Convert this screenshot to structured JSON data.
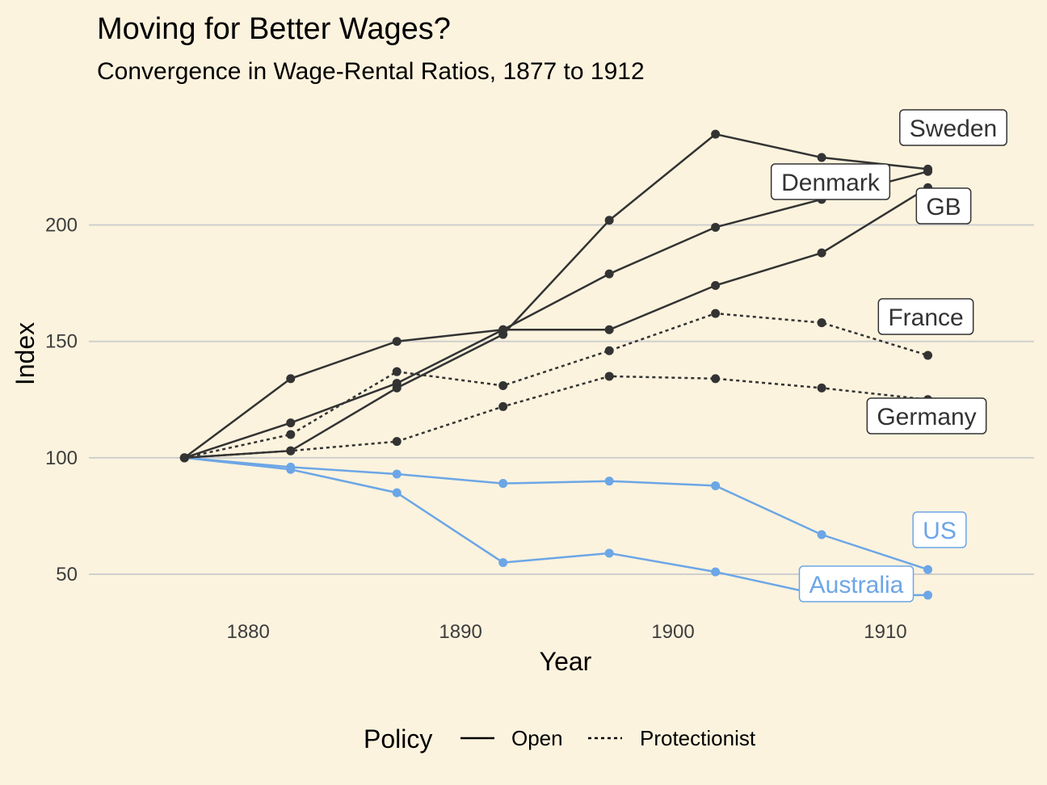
{
  "chart_data": {
    "type": "line",
    "title": "Moving for Better Wages?",
    "subtitle": "Convergence in Wage-Rental Ratios, 1877 to 1912",
    "xlabel": "Year",
    "ylabel": "Index",
    "xlim": [
      1872.5,
      1917
    ],
    "ylim": [
      33,
      255
    ],
    "x_ticks": [
      1880,
      1890,
      1900,
      1910
    ],
    "y_ticks": [
      50,
      100,
      150,
      200
    ],
    "grid": "horizontal major gridlines",
    "legend": {
      "title": "Policy",
      "position": "bottom",
      "items": [
        {
          "label": "Open",
          "linetype": "solid"
        },
        {
          "label": "Protectionist",
          "linetype": "dotted"
        }
      ]
    },
    "colors": {
      "background": "#fcf3de",
      "dark": "#333333",
      "blue": "#6ca6e6",
      "grid": "#cfcfcf"
    },
    "x": [
      1877,
      1882,
      1887,
      1892,
      1897,
      1902,
      1907,
      1912
    ],
    "series": [
      {
        "name": "Sweden",
        "policy": "Open",
        "color": "#333333",
        "values": [
          100,
          103,
          130,
          153,
          202,
          239,
          229,
          224
        ]
      },
      {
        "name": "Denmark",
        "policy": "Open",
        "color": "#333333",
        "values": [
          100,
          115,
          132,
          155,
          179,
          199,
          211,
          223
        ]
      },
      {
        "name": "GB",
        "policy": "Open",
        "color": "#333333",
        "values": [
          100,
          134,
          150,
          155,
          155,
          174,
          188,
          216
        ]
      },
      {
        "name": "France",
        "policy": "Protectionist",
        "color": "#333333",
        "values": [
          100,
          110,
          137,
          131,
          146,
          162,
          158,
          144
        ]
      },
      {
        "name": "Germany",
        "policy": "Protectionist",
        "color": "#333333",
        "values": [
          100,
          103,
          107,
          122,
          135,
          134,
          130,
          125
        ]
      },
      {
        "name": "US",
        "policy": "Open",
        "color": "#6ca6e6",
        "values": [
          100,
          96,
          93,
          89,
          90,
          88,
          67,
          52
        ]
      },
      {
        "name": "Australia",
        "policy": "Open",
        "color": "#6ca6e6",
        "values": [
          100,
          95,
          85,
          55,
          59,
          51,
          41,
          41
        ]
      }
    ]
  }
}
